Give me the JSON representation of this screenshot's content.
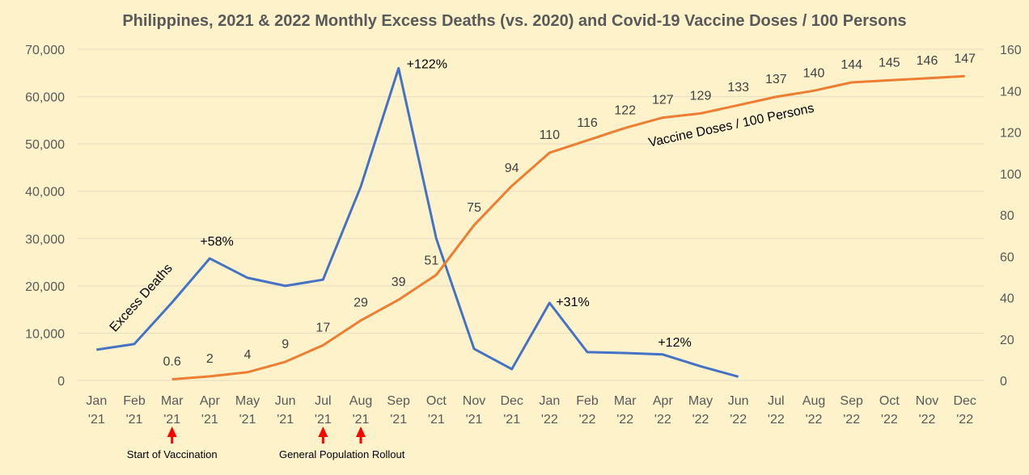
{
  "chart_data": {
    "type": "line",
    "title": "Philippines, 2021 & 2022 Monthly Excess Deaths (vs. 2020) and Covid-19 Vaccine Doses / 100 Persons",
    "categories": [
      [
        "Jan",
        "'21"
      ],
      [
        "Feb",
        "'21"
      ],
      [
        "Mar",
        "'21"
      ],
      [
        "Apr",
        "'21"
      ],
      [
        "May",
        "'21"
      ],
      [
        "Jun",
        "'21"
      ],
      [
        "Jul",
        "'21"
      ],
      [
        "Aug",
        "'21"
      ],
      [
        "Sep",
        "'21"
      ],
      [
        "Oct",
        "'21"
      ],
      [
        "Nov",
        "'21"
      ],
      [
        "Dec",
        "'21"
      ],
      [
        "Jan",
        "'22"
      ],
      [
        "Feb",
        "'22"
      ],
      [
        "Mar",
        "'22"
      ],
      [
        "Apr",
        "'22"
      ],
      [
        "May",
        "'22"
      ],
      [
        "Jun",
        "'22"
      ],
      [
        "Jul",
        "'22"
      ],
      [
        "Aug",
        "'22"
      ],
      [
        "Sep",
        "'22"
      ],
      [
        "Oct",
        "'22"
      ],
      [
        "Nov",
        "'22"
      ],
      [
        "Dec",
        "'22"
      ]
    ],
    "y_left": {
      "min": 0,
      "max": 70000,
      "ticks": [
        "0",
        "10,000",
        "20,000",
        "30,000",
        "40,000",
        "50,000",
        "60,000",
        "70,000"
      ]
    },
    "y_right": {
      "min": 0,
      "max": 160,
      "ticks": [
        "0",
        "20",
        "40",
        "60",
        "80",
        "100",
        "120",
        "140",
        "160"
      ]
    },
    "grid": "horizontal",
    "series": [
      {
        "name": "Excess Deaths",
        "axis": "left",
        "color": "#4472c4",
        "values": [
          6500,
          7700,
          16500,
          25800,
          21700,
          20000,
          21300,
          41000,
          66000,
          30000,
          6700,
          2400,
          16400,
          6000,
          5800,
          5500,
          3000,
          800,
          null,
          null,
          null,
          null,
          null,
          null
        ],
        "annotations": [
          {
            "index": 3,
            "text": "+58%"
          },
          {
            "index": 8,
            "text": "+122%"
          },
          {
            "index": 12,
            "text": "+31%"
          },
          {
            "index": 15,
            "text": "+12%"
          }
        ]
      },
      {
        "name": "Vaccine Doses / 100 Persons",
        "axis": "right",
        "color": "#ed7d31",
        "values": [
          null,
          null,
          0.6,
          2,
          4,
          9,
          17,
          29,
          39,
          51,
          75,
          94,
          110,
          116,
          122,
          127,
          129,
          133,
          137,
          140,
          144,
          145,
          146,
          147
        ],
        "labels": [
          null,
          null,
          "0.6",
          "2",
          "4",
          "9",
          "17",
          "29",
          "39",
          "51",
          "75",
          "94",
          "110",
          "116",
          "122",
          "127",
          "129",
          "133",
          "137",
          "140",
          "144",
          "145",
          "146",
          "147"
        ]
      }
    ],
    "markers": [
      {
        "indices": [
          2
        ],
        "text": "Start of Vaccination",
        "color": "#ff0000"
      },
      {
        "indices": [
          6,
          7
        ],
        "text": "General Population Rollout",
        "color": "#ff0000"
      }
    ]
  }
}
